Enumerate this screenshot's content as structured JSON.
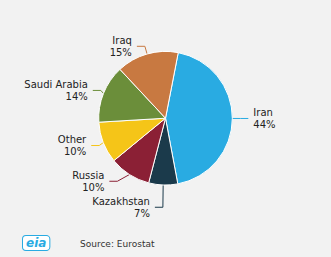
{
  "chart_data": {
    "type": "pie",
    "categories": [
      "Iran",
      "Kazakhstan",
      "Russia",
      "Other",
      "Saudi Arabia",
      "Iraq"
    ],
    "values": [
      44,
      7,
      10,
      10,
      14,
      15
    ],
    "value_labels": [
      "44%",
      "7%",
      "10%",
      "10%",
      "14%",
      "15%"
    ],
    "colors": [
      "#29ABE2",
      "#1B3A4B",
      "#8B2035",
      "#F5C518",
      "#6B8E3A",
      "#C87941"
    ],
    "data_labels": true,
    "annotations": [
      "Source: Eurostat",
      "eia"
    ]
  }
}
